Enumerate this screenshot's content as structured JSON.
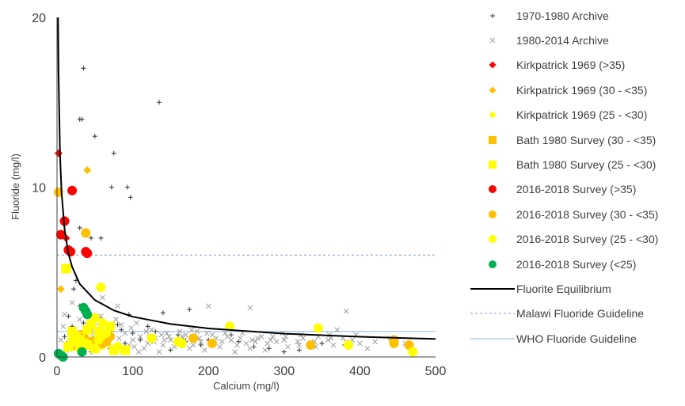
{
  "chart_data": {
    "type": "scatter",
    "xlabel": "Calcium (mg/l)",
    "ylabel": "Fluoride (mg/l)",
    "xlim": [
      0,
      500
    ],
    "ylim": [
      0,
      20
    ],
    "xticks": [
      "0",
      "100",
      "200",
      "300",
      "400",
      "500"
    ],
    "yticks": [
      "0",
      "10",
      "20"
    ],
    "grid": false,
    "legend_position": "right",
    "series": [
      {
        "name": "1970-1980 Archive",
        "marker": "plus",
        "color": "#404040",
        "points": [
          [
            35,
            17
          ],
          [
            30,
            14
          ],
          [
            33,
            14
          ],
          [
            135,
            15
          ],
          [
            50,
            13
          ],
          [
            75,
            12
          ],
          [
            72,
            10
          ],
          [
            93,
            10
          ],
          [
            97,
            9.4
          ],
          [
            45,
            7
          ],
          [
            58,
            7
          ],
          [
            30,
            7.6
          ],
          [
            25,
            4.5
          ],
          [
            22,
            4.0
          ],
          [
            30,
            3.0
          ],
          [
            40,
            2.6
          ],
          [
            55,
            2.3
          ],
          [
            65,
            2.0
          ],
          [
            85,
            1.6
          ],
          [
            100,
            1.4
          ],
          [
            110,
            1.0
          ],
          [
            140,
            2.6
          ],
          [
            175,
            2.8
          ],
          [
            95,
            2.5
          ],
          [
            120,
            1.8
          ],
          [
            160,
            1.3
          ],
          [
            200,
            1.0
          ],
          [
            240,
            0.9
          ],
          [
            280,
            0.5
          ],
          [
            320,
            0.4
          ],
          [
            350,
            0.8
          ],
          [
            380,
            0.7
          ],
          [
            150,
            0.4
          ],
          [
            90,
            0.8
          ],
          [
            70,
            0.5
          ],
          [
            45,
            0.3
          ],
          [
            60,
            1.2
          ],
          [
            80,
            1.9
          ],
          [
            35,
            2.0
          ],
          [
            20,
            1.8
          ],
          [
            15,
            2.4
          ],
          [
            10,
            1.2
          ],
          [
            130,
            1.5
          ],
          [
            190,
            0.7
          ],
          [
            260,
            0.6
          ],
          [
            300,
            0.3
          ],
          [
            230,
            1.3
          ],
          [
            170,
            0.9
          ]
        ]
      },
      {
        "name": "1980-2014 Archive",
        "marker": "cross",
        "color": "#a6a6a6",
        "points": [
          [
            200,
            3.0
          ],
          [
            255,
            2.9
          ],
          [
            382,
            2.7
          ],
          [
            60,
            3.5
          ],
          [
            80,
            3.0
          ],
          [
            20,
            3.2
          ],
          [
            10,
            2.5
          ],
          [
            30,
            2.2
          ],
          [
            50,
            1.8
          ],
          [
            70,
            1.6
          ],
          [
            90,
            1.4
          ],
          [
            110,
            1.2
          ],
          [
            130,
            1.1
          ],
          [
            150,
            1.0
          ],
          [
            170,
            1.3
          ],
          [
            190,
            0.9
          ],
          [
            210,
            1.1
          ],
          [
            230,
            1.0
          ],
          [
            250,
            0.8
          ],
          [
            270,
            1.2
          ],
          [
            290,
            0.9
          ],
          [
            300,
            1.0
          ],
          [
            320,
            0.7
          ],
          [
            340,
            0.9
          ],
          [
            360,
            1.3
          ],
          [
            370,
            1.6
          ],
          [
            390,
            1.0
          ],
          [
            420,
            0.9
          ],
          [
            440,
            1.1
          ],
          [
            460,
            0.8
          ],
          [
            25,
            1.3
          ],
          [
            40,
            0.9
          ],
          [
            55,
            0.6
          ],
          [
            75,
            0.4
          ],
          [
            95,
            0.7
          ],
          [
            115,
            0.5
          ],
          [
            135,
            0.3
          ],
          [
            155,
            0.6
          ],
          [
            175,
            0.5
          ],
          [
            195,
            0.4
          ],
          [
            215,
            0.6
          ],
          [
            235,
            0.3
          ],
          [
            255,
            0.5
          ],
          [
            275,
            0.4
          ],
          [
            15,
            0.8
          ],
          [
            5,
            1.0
          ],
          [
            35,
            0.5
          ],
          [
            65,
            0.9
          ],
          [
            85,
            1.9
          ],
          [
            105,
            2.0
          ],
          [
            125,
            1.6
          ],
          [
            145,
            1.4
          ],
          [
            165,
            1.2
          ],
          [
            185,
            1.5
          ],
          [
            205,
            1.3
          ],
          [
            225,
            1.2
          ],
          [
            245,
            1.4
          ],
          [
            265,
            1.1
          ],
          [
            285,
            1.2
          ],
          [
            305,
            0.6
          ],
          [
            325,
            1.1
          ],
          [
            345,
            1.2
          ],
          [
            365,
            0.7
          ],
          [
            395,
            1.3
          ],
          [
            400,
            0.8
          ],
          [
            410,
            0.5
          ],
          [
            45,
            1.5
          ],
          [
            60,
            1.1
          ],
          [
            80,
            0.7
          ],
          [
            100,
            1.0
          ],
          [
            120,
            0.8
          ],
          [
            140,
            0.7
          ],
          [
            160,
            0.8
          ],
          [
            180,
            0.7
          ],
          [
            12,
            0.4
          ],
          [
            28,
            0.6
          ],
          [
            48,
            1.2
          ],
          [
            68,
            1.3
          ],
          [
            88,
            0.5
          ],
          [
            108,
            0.3
          ],
          [
            128,
            0.9
          ],
          [
            148,
            1.2
          ],
          [
            168,
            1.0
          ],
          [
            188,
            1.1
          ],
          [
            18,
            1.6
          ],
          [
            38,
            1.7
          ],
          [
            58,
            2.4
          ],
          [
            78,
            2.2
          ],
          [
            98,
            1.7
          ],
          [
            118,
            1.5
          ],
          [
            138,
            1.3
          ],
          [
            158,
            0.9
          ],
          [
            178,
            1.6
          ],
          [
            198,
            1.4
          ],
          [
            218,
            0.9
          ],
          [
            238,
            0.7
          ],
          [
            258,
            1.0
          ],
          [
            278,
            0.8
          ],
          [
            298,
            1.4
          ],
          [
            318,
            0.9
          ],
          [
            338,
            0.8
          ],
          [
            358,
            1.0
          ],
          [
            378,
            1.1
          ],
          [
            8,
            1.8
          ],
          [
            22,
            1.1
          ],
          [
            42,
            1.0
          ],
          [
            62,
            0.8
          ],
          [
            82,
            1.1
          ],
          [
            102,
            0.6
          ],
          [
            122,
            1.2
          ],
          [
            142,
            1.0
          ],
          [
            162,
            1.5
          ],
          [
            182,
            1.2
          ],
          [
            202,
            0.8
          ],
          [
            222,
            1.4
          ],
          [
            242,
            1.1
          ],
          [
            262,
            0.9
          ],
          [
            282,
            1.0
          ],
          [
            302,
            1.2
          ],
          [
            322,
            1.3
          ],
          [
            342,
            0.6
          ],
          [
            362,
            1.1
          ],
          [
            382,
            0.9
          ]
        ]
      },
      {
        "name": "Kirkpatrick 1969 (>35)",
        "marker": "diamond",
        "color": "#ff0000",
        "points": [
          [
            2,
            12
          ],
          [
            12,
            7
          ]
        ]
      },
      {
        "name": "Kirkpatrick 1969 (30 - <35)",
        "marker": "diamond",
        "color": "#ffc000",
        "points": [
          [
            40,
            11
          ],
          [
            5,
            4
          ]
        ]
      },
      {
        "name": "Kirkpatrick 1969 (25 - <30)",
        "marker": "diamond",
        "color": "#ffff00",
        "points": [
          [
            45,
            1.0
          ],
          [
            60,
            0.6
          ]
        ]
      },
      {
        "name": "Bath 1980 Survey (30 - <35)",
        "marker": "square",
        "color": "#ffc000",
        "points": [
          [
            35,
            1.3
          ],
          [
            45,
            0.9
          ],
          [
            65,
            0.9
          ],
          [
            25,
            0.7
          ]
        ]
      },
      {
        "name": "Bath 1980 Survey (25 - <30)",
        "marker": "square",
        "color": "#ffff00",
        "points": [
          [
            12,
            5.2
          ],
          [
            20,
            1.5
          ],
          [
            25,
            1.2
          ],
          [
            30,
            1.0
          ],
          [
            35,
            0.8
          ],
          [
            40,
            0.7
          ],
          [
            45,
            1.9
          ],
          [
            55,
            1.5
          ],
          [
            70,
            1.8
          ],
          [
            75,
            0.4
          ],
          [
            90,
            0.4
          ],
          [
            20,
            0.9
          ],
          [
            15,
            0.6
          ],
          [
            50,
            0.5
          ],
          [
            60,
            1.3
          ],
          [
            40,
            1.6
          ]
        ]
      },
      {
        "name": "2016-2018 Survey (>35)",
        "marker": "circle",
        "color": "#ff0000",
        "points": [
          [
            20,
            9.8
          ],
          [
            10,
            8.0
          ],
          [
            5,
            7.2
          ],
          [
            15,
            6.3
          ],
          [
            18,
            6.2
          ],
          [
            38,
            6.2
          ],
          [
            40,
            6.1
          ]
        ]
      },
      {
        "name": "2016-2018 Survey (30 - <35)",
        "marker": "circle",
        "color": "#ffc000",
        "points": [
          [
            2,
            9.7
          ],
          [
            38,
            7.3
          ],
          [
            180,
            1.1
          ],
          [
            205,
            0.8
          ],
          [
            335,
            0.7
          ],
          [
            445,
            1.0
          ],
          [
            445,
            0.8
          ],
          [
            465,
            0.7
          ],
          [
            60,
            0.8
          ],
          [
            70,
            1.2
          ]
        ]
      },
      {
        "name": "2016-2018 Survey (25 - <30)",
        "marker": "circle",
        "color": "#ffff00",
        "points": [
          [
            58,
            4.1
          ],
          [
            50,
            2.3
          ],
          [
            60,
            2.0
          ],
          [
            65,
            1.4
          ],
          [
            125,
            1.1
          ],
          [
            160,
            0.9
          ],
          [
            165,
            0.8
          ],
          [
            228,
            1.8
          ],
          [
            345,
            1.7
          ],
          [
            385,
            0.7
          ],
          [
            470,
            0.3
          ],
          [
            55,
            1.0
          ],
          [
            80,
            0.6
          ],
          [
            30,
            0.5
          ]
        ]
      },
      {
        "name": "2016-2018 Survey (<25)",
        "marker": "circle",
        "color": "#00b050",
        "points": [
          [
            35,
            2.9
          ],
          [
            38,
            2.7
          ],
          [
            40,
            2.5
          ],
          [
            2,
            0.2
          ],
          [
            5,
            0.1
          ],
          [
            8,
            0.0
          ],
          [
            33,
            0.3
          ]
        ]
      },
      {
        "name": "Fluorite Equilibrium",
        "type": "line",
        "style": "solid",
        "color": "#000000",
        "relation": "F ≈ 23.7 × Ca^-0.5",
        "points": [
          [
            1.4,
            20
          ],
          [
            2,
            16.8
          ],
          [
            4,
            11.9
          ],
          [
            6,
            9.7
          ],
          [
            10,
            7.5
          ],
          [
            15,
            6.1
          ],
          [
            20,
            5.3
          ],
          [
            30,
            4.3
          ],
          [
            50,
            3.35
          ],
          [
            75,
            2.74
          ],
          [
            100,
            2.37
          ],
          [
            150,
            1.94
          ],
          [
            200,
            1.68
          ],
          [
            300,
            1.37
          ],
          [
            400,
            1.19
          ],
          [
            500,
            1.06
          ]
        ]
      },
      {
        "name": "Malawi Fluoride Guideline",
        "type": "line",
        "style": "dashed",
        "color": "#7f9ec5",
        "y": 6.0,
        "x_range": [
          0,
          500
        ]
      },
      {
        "name": "WHO Fluoride Guideline",
        "type": "line",
        "style": "solid",
        "color": "#8eb4d8",
        "y": 1.5,
        "x_range": [
          0,
          500
        ]
      }
    ]
  }
}
